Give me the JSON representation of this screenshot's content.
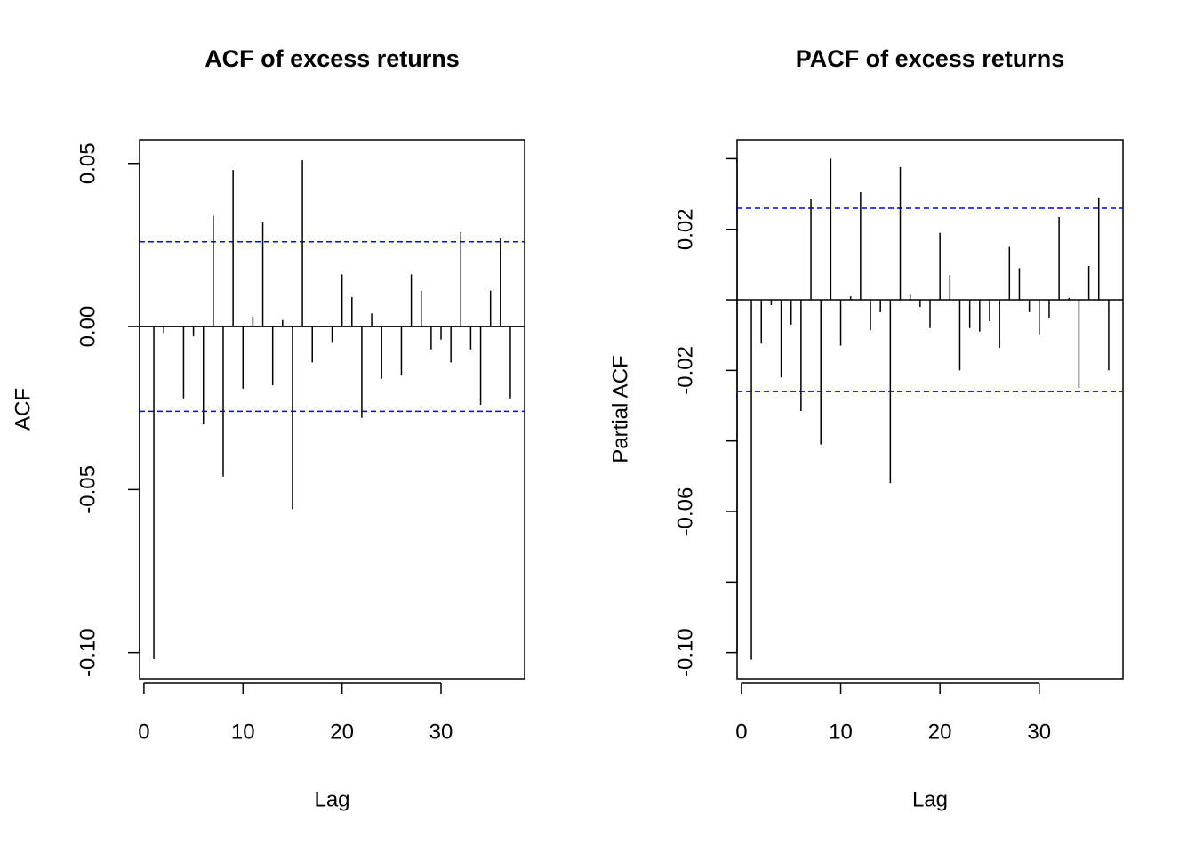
{
  "chart_data": [
    {
      "type": "bar",
      "title": "ACF of excess returns",
      "xlabel": "Lag",
      "ylabel": "ACF",
      "x": [
        1,
        2,
        3,
        4,
        5,
        6,
        7,
        8,
        9,
        10,
        11,
        12,
        13,
        14,
        15,
        16,
        17,
        18,
        19,
        20,
        21,
        22,
        23,
        24,
        25,
        26,
        27,
        28,
        29,
        30,
        31,
        32,
        33,
        34,
        35,
        36,
        37
      ],
      "values": [
        -0.102,
        -0.002,
        0.0,
        -0.022,
        -0.003,
        -0.03,
        0.034,
        -0.046,
        0.048,
        -0.019,
        0.003,
        0.032,
        -0.018,
        0.002,
        -0.056,
        0.051,
        -0.011,
        0.0,
        -0.005,
        0.016,
        0.009,
        -0.028,
        0.004,
        -0.016,
        0.0,
        -0.015,
        0.016,
        0.011,
        -0.007,
        -0.004,
        -0.011,
        0.029,
        -0.007,
        -0.024,
        0.011,
        0.027,
        -0.022
      ],
      "color": "#000000",
      "ci_lines": [
        0.026,
        -0.026
      ],
      "ci_color": "#0000ff",
      "xlim": [
        -0.44,
        38.44
      ],
      "xticks": [
        0,
        10,
        20,
        30
      ],
      "ylim": [
        -0.108,
        0.0573
      ],
      "yticks": [
        {
          "value": -0.1,
          "label": "-0.10"
        },
        -0.05,
        {
          "value": 0,
          "label": "0.00"
        },
        0.05
      ]
    },
    {
      "type": "bar",
      "title": "PACF of excess returns",
      "xlabel": "Lag",
      "ylabel": "Partial ACF",
      "x": [
        1,
        2,
        3,
        4,
        5,
        6,
        7,
        8,
        9,
        10,
        11,
        12,
        13,
        14,
        15,
        16,
        17,
        18,
        19,
        20,
        21,
        22,
        23,
        24,
        25,
        26,
        27,
        28,
        29,
        30,
        31,
        32,
        33,
        34,
        35,
        36,
        37
      ],
      "values": [
        -0.102,
        -0.0124,
        -0.0015,
        -0.022,
        -0.007,
        -0.0315,
        0.0285,
        -0.041,
        0.04,
        -0.013,
        0.001,
        0.0305,
        -0.0086,
        -0.0035,
        -0.052,
        0.0376,
        0.0015,
        -0.002,
        -0.008,
        0.019,
        0.007,
        -0.02,
        -0.008,
        -0.009,
        -0.006,
        -0.0136,
        0.015,
        0.009,
        -0.0035,
        -0.01,
        -0.005,
        0.0235,
        0.0005,
        -0.025,
        0.0096,
        0.0288,
        -0.02
      ],
      "color": "#000000",
      "ci_lines": [
        0.026,
        -0.026
      ],
      "ci_color": "#0000ff",
      "xlim": [
        -0.44,
        38.44
      ],
      "xticks": [
        0,
        10,
        20,
        30
      ],
      "ylim": [
        -0.1074,
        0.0454
      ],
      "yticks": [
        {
          "value": -0.1,
          "label": "-0.10"
        },
        {
          "value": -0.08,
          "label": null
        },
        -0.06,
        {
          "value": -0.04,
          "label": null
        },
        -0.02,
        {
          "value": 0,
          "label": null
        },
        0.02,
        {
          "value": 0.04,
          "label": null
        }
      ]
    }
  ]
}
